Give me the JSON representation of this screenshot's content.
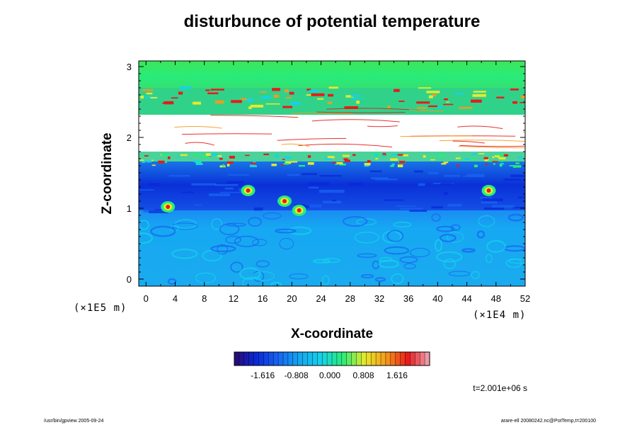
{
  "chart_data": {
    "type": "heatmap",
    "title": "disturbunce of potential temperature",
    "xlabel": "X-coordinate",
    "ylabel": "Z-coordinate",
    "x_ticks": [
      "0",
      "4",
      "8",
      "12",
      "16",
      "20",
      "24",
      "28",
      "32",
      "36",
      "40",
      "44",
      "48",
      "52"
    ],
    "y_ticks": [
      "0",
      "1",
      "2",
      "3"
    ],
    "xlim": [
      -1,
      52
    ],
    "ylim": [
      -0.1,
      3.08
    ],
    "x_unit": "(×1E4 m)",
    "y_unit": "(×1E5 m)",
    "colorbar": {
      "ticks": [
        "-1.616",
        "-0.808",
        "0.000",
        "0.808",
        "1.616"
      ],
      "tick_values": [
        -1.616,
        -0.808,
        0.0,
        0.808,
        1.616
      ],
      "range": [
        -2.3,
        2.4
      ],
      "levels": 40
    },
    "colors": {
      "low": "#2a0a6e",
      "deep_blue": "#0a28d8",
      "blue": "#1864f2",
      "sky": "#12a6f2",
      "cyan": "#16d2ea",
      "green": "#28ec7a",
      "yellow": "#e6ea2a",
      "orange": "#f59a1c",
      "red": "#e81a1a",
      "high": "#f0a8b8",
      "missing": "#ffffff"
    },
    "layers": [
      {
        "z": [
          -0.1,
          0.95
        ],
        "value": -1.0,
        "pattern": "sky-blue lower layer with turbulent eddies"
      },
      {
        "z": [
          0.95,
          1.6
        ],
        "value": -1.45,
        "pattern": "deep blue band with plumes near x=4, 20, 47"
      },
      {
        "z": [
          1.6,
          1.78
        ],
        "value": 0.2,
        "pattern": "green/yellow noisy boundary"
      },
      {
        "z": [
          1.78,
          2.45
        ],
        "value": null,
        "pattern": "white out-of-range region with red/yellow streaks"
      },
      {
        "z": [
          2.45,
          2.75
        ],
        "value": 0.6,
        "pattern": "green with red/yellow filaments"
      },
      {
        "z": [
          2.75,
          3.08
        ],
        "value": 0.1,
        "pattern": "uniform green top layer"
      }
    ]
  },
  "annotations": {
    "time": "t=2.001e+06 s",
    "footer_left": "/usr/bin/gpview 2005-09-24",
    "footer_right": "arare-ell 20080242.nc@PotTemp,t=200100"
  }
}
